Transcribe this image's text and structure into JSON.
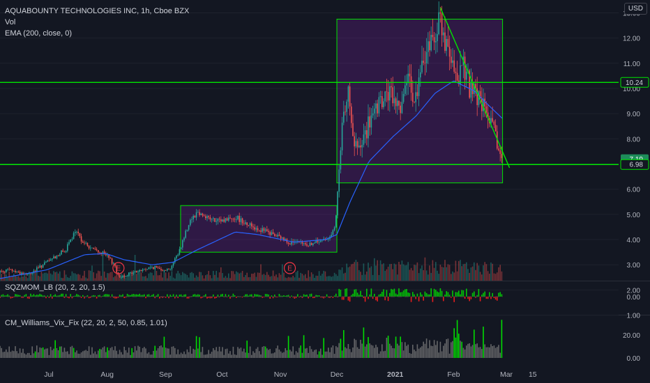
{
  "header": {
    "title": "AQUABOUNTY TECHNOLOGIES INC, 1h, Cboe BZX",
    "indicator_vol": "Vol",
    "indicator_ema": "EMA (200, close, 0)",
    "currency": "USD"
  },
  "panes": {
    "sqzmom_label": "SQZMOM_LB (20, 2, 20, 1.5)",
    "williams_label": "CM_Williams_Vix_Fix (22, 20, 2, 50, 0.85, 1.01)"
  },
  "colors": {
    "background": "#131722",
    "grid": "#1e222d",
    "candle_up": "#26a69a",
    "candle_down": "#ef5350",
    "ema": "#2962ff",
    "level_line": "#00e600",
    "box_fill": "#7b1fa2",
    "trendline": "#00e600",
    "earnings": "#f23645",
    "sqz_green": "#00e600",
    "sqz_red": "#ff1e1e",
    "vix_gray": "#808080",
    "vix_green": "#00e600"
  },
  "chart_data": {
    "type": "candlestick",
    "symbol": "AQUABOUNTY TECHNOLOGIES INC",
    "interval": "1h",
    "exchange": "Cboe BZX",
    "x_ticks": [
      "Jul",
      "Aug",
      "Sep",
      "Oct",
      "Nov",
      "Dec",
      "2021",
      "Feb",
      "Mar",
      "15"
    ],
    "y_ticks": [
      "13.00",
      "12.00",
      "11.00",
      "10.00",
      "9.00",
      "8.00",
      "7.00",
      "6.00",
      "5.00",
      "4.00",
      "3.00",
      "2.00",
      "1.00"
    ],
    "ylim": [
      0.9,
      13.6
    ],
    "sqz_ticks": [
      "0.00"
    ],
    "vix_ticks": [
      "20.00",
      "0.00"
    ],
    "price_labels": [
      {
        "value": 10.24,
        "text": "10.24",
        "kind": "level"
      },
      {
        "value": 7.19,
        "text": "7.19",
        "kind": "last"
      },
      {
        "value": 6.98,
        "text": "6.98",
        "kind": "level"
      }
    ],
    "horizontal_levels": [
      10.24,
      6.98
    ],
    "earnings_markers": [
      {
        "date": "Aug 7",
        "label": "E"
      },
      {
        "date": "Nov 6",
        "label": "E"
      }
    ],
    "rectangles": [
      {
        "from": "Sep 9",
        "to": "Dec 1",
        "top": 5.35,
        "bottom": 3.5
      },
      {
        "from": "Dec 1",
        "to": "Feb 27",
        "top": 12.75,
        "bottom": 6.25
      }
    ],
    "trendline": {
      "from_date": "Jan 25",
      "from_price": 13.2,
      "to_date": "Feb 27",
      "to_price": 6.85
    },
    "price_path": [
      [
        "Jun 1",
        2.7
      ],
      [
        "Jun 10",
        2.8
      ],
      [
        "Jun 20",
        2.6
      ],
      [
        "Jun 30",
        3.1
      ],
      [
        "Jul 10",
        3.6
      ],
      [
        "Jul 15",
        4.3
      ],
      [
        "Jul 22",
        3.7
      ],
      [
        "Jul 31",
        3.4
      ],
      [
        "Aug 5",
        3.0
      ],
      [
        "Aug 7",
        2.5
      ],
      [
        "Aug 15",
        2.7
      ],
      [
        "Aug 25",
        2.9
      ],
      [
        "Sep 3",
        2.8
      ],
      [
        "Sep 8",
        3.5
      ],
      [
        "Sep 14",
        4.8
      ],
      [
        "Sep 18",
        5.1
      ],
      [
        "Sep 28",
        4.7
      ],
      [
        "Oct 8",
        4.9
      ],
      [
        "Oct 18",
        4.5
      ],
      [
        "Oct 28",
        4.2
      ],
      [
        "Nov 6",
        3.9
      ],
      [
        "Nov 16",
        3.8
      ],
      [
        "Nov 25",
        4.0
      ],
      [
        "Nov 30",
        4.4
      ],
      [
        "Dec 2",
        6.5
      ],
      [
        "Dec 4",
        8.5
      ],
      [
        "Dec 7",
        10.4
      ],
      [
        "Dec 9",
        8.0
      ],
      [
        "Dec 13",
        7.5
      ],
      [
        "Dec 18",
        8.6
      ],
      [
        "Dec 23",
        9.2
      ],
      [
        "Dec 28",
        9.8
      ],
      [
        "Jan 3",
        9.3
      ],
      [
        "Jan 8",
        10.2
      ],
      [
        "Jan 12",
        9.6
      ],
      [
        "Jan 17",
        11.4
      ],
      [
        "Jan 22",
        12.2
      ],
      [
        "Jan 25",
        12.8
      ],
      [
        "Jan 28",
        11.6
      ],
      [
        "Feb 2",
        10.3
      ],
      [
        "Feb 6",
        11.0
      ],
      [
        "Feb 10",
        9.9
      ],
      [
        "Feb 14",
        9.6
      ],
      [
        "Feb 18",
        9.1
      ],
      [
        "Feb 22",
        8.3
      ],
      [
        "Feb 25",
        7.6
      ],
      [
        "Feb 27",
        7.19
      ]
    ],
    "ema_path": [
      [
        "Jun 1",
        2.4
      ],
      [
        "Jun 30",
        2.8
      ],
      [
        "Jul 20",
        3.4
      ],
      [
        "Jul 31",
        3.45
      ],
      [
        "Aug 10",
        3.2
      ],
      [
        "Aug 25",
        3.0
      ],
      [
        "Sep 5",
        3.1
      ],
      [
        "Sep 18",
        3.6
      ],
      [
        "Oct 8",
        4.3
      ],
      [
        "Oct 20",
        4.2
      ],
      [
        "Nov 8",
        3.9
      ],
      [
        "Nov 25",
        4.0
      ],
      [
        "Dec 1",
        4.2
      ],
      [
        "Dec 8",
        5.5
      ],
      [
        "Dec 18",
        7.1
      ],
      [
        "Dec 31",
        8.1
      ],
      [
        "Jan 12",
        8.9
      ],
      [
        "Jan 22",
        9.8
      ],
      [
        "Feb 1",
        10.3
      ],
      [
        "Feb 12",
        9.9
      ],
      [
        "Feb 20",
        9.3
      ],
      [
        "Feb 27",
        8.8
      ]
    ]
  }
}
